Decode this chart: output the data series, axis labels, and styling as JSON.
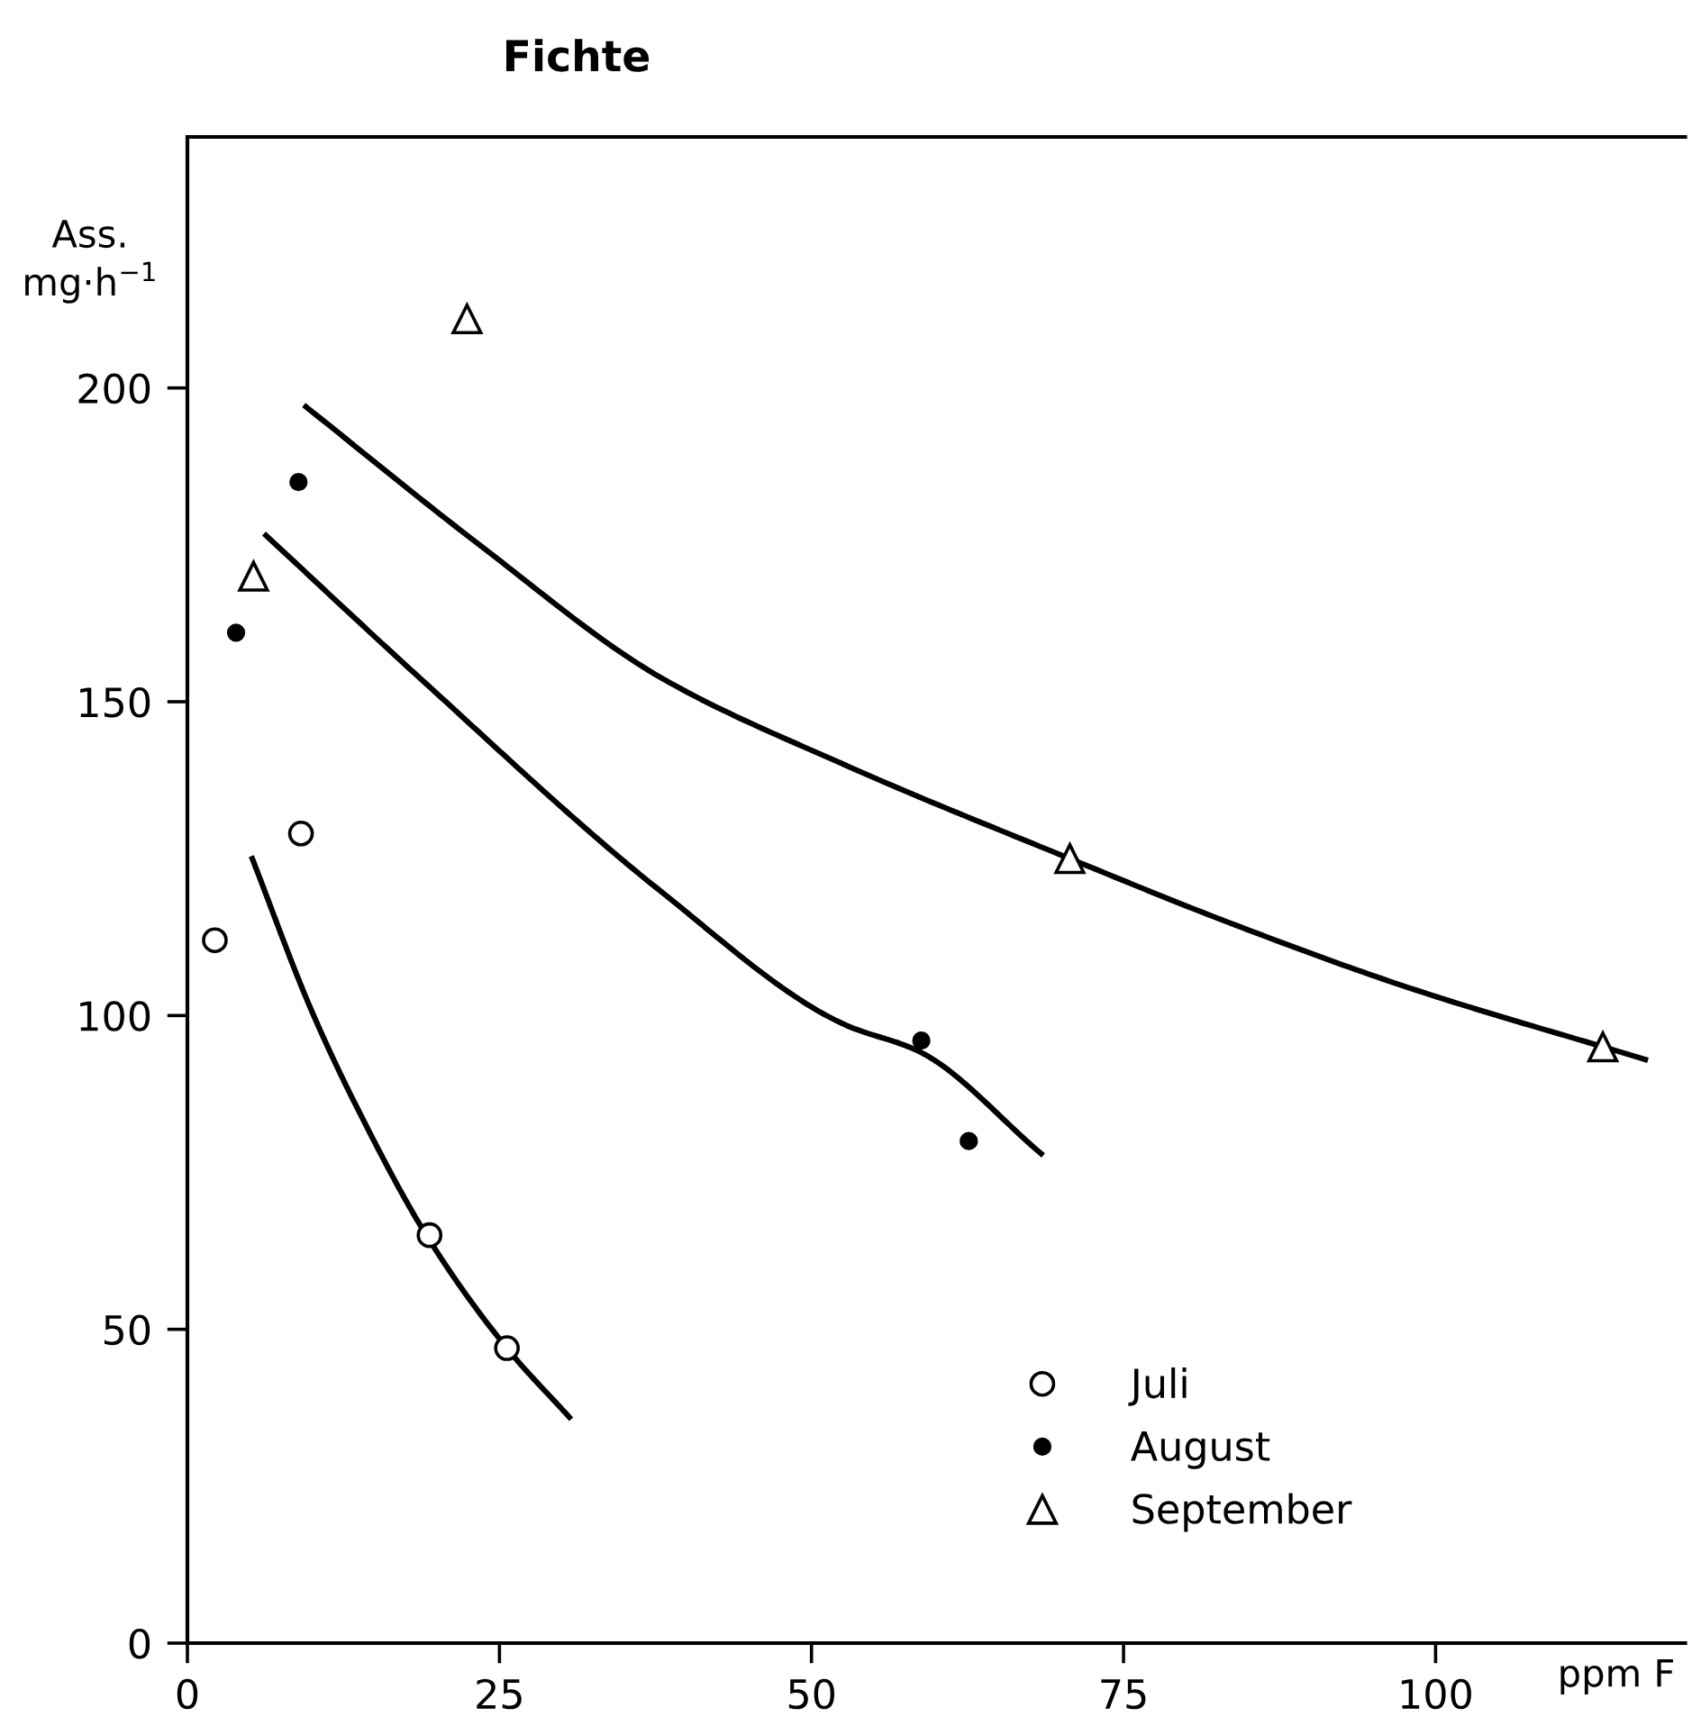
{
  "chart_data": {
    "type": "scatter",
    "title": "Fichte",
    "xlabel": "ppm F",
    "ylabel": "Ass.\nmg·h$^{−1}$",
    "xlim": [
      0,
      120
    ],
    "ylim": [
      0,
      240
    ],
    "xticks": [
      0,
      25,
      50,
      75,
      100
    ],
    "yticks": [
      0,
      50,
      100,
      150,
      200
    ],
    "grid": false,
    "legend": "bottom right",
    "series": [
      {
        "name": "Juli",
        "color": "#000000",
        "marker": "circle",
        "x": [
          2.2,
          9.1,
          19.4,
          25.6
        ],
        "values": [
          112,
          129,
          65,
          47
        ]
      },
      {
        "name": "August",
        "color": "#000000",
        "marker": "circle",
        "x": [
          3.9,
          8.9,
          58.8,
          62.6
        ],
        "values": [
          161,
          185,
          96,
          80
        ]
      },
      {
        "name": "September",
        "color": "#000000",
        "marker": "triangle",
        "x": [
          5.3,
          22.4,
          70.7,
          113.4
        ],
        "values": [
          170,
          211,
          125,
          95
        ]
      },
      {
        "type": "line",
        "color": "#000000",
        "marker": "none",
        "x": [
          5.2,
          9.9,
          13.8,
          19.3,
          25.6,
          30.6
        ],
        "values": [
          125,
          101,
          84.5,
          64.5,
          47,
          36
        ]
      },
      {
        "type": "line",
        "color": "#000000",
        "marker": "none",
        "x": [
          6.3,
          18.5,
          37.8,
          52.6,
          58.6,
          68.4
        ],
        "values": [
          176.5,
          154,
          120,
          98.6,
          94.3,
          78
        ]
      },
      {
        "type": "line",
        "color": "#000000",
        "marker": "none",
        "x": [
          9.5,
          23.4,
          37.8,
          52.6,
          70.7,
          83.2,
          97.6,
          116.8
        ],
        "values": [
          197,
          175,
          154,
          140,
          125,
          115,
          104.6,
          93
        ]
      }
    ]
  }
}
